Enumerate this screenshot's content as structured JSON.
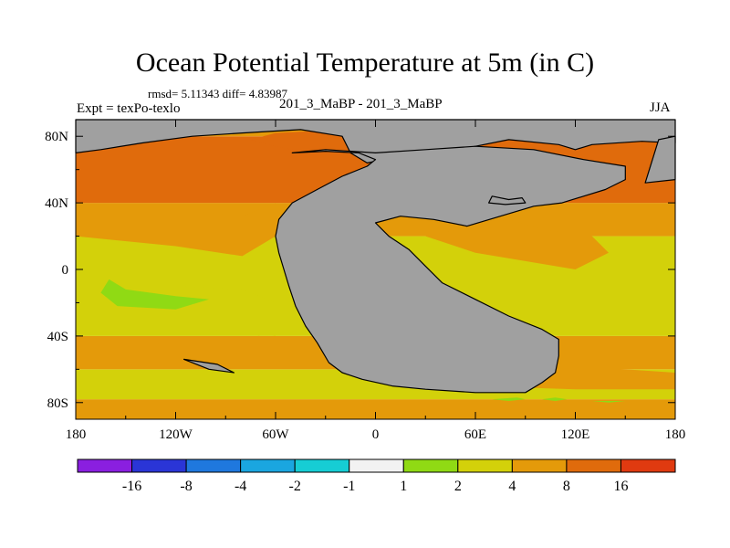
{
  "chart_data": {
    "type": "heatmap",
    "title": "Ocean Potential Temperature at 5m (in C)",
    "stats": "rmsd= 5.11343  diff= 4.83987",
    "center_label": "201_3_MaBP - 201_3_MaBP",
    "left_label": "Expt = texPo-texlo",
    "right_label": "JJA",
    "x_ticks": [
      "180",
      "120W",
      "60W",
      "0",
      "60E",
      "120E",
      "180"
    ],
    "y_ticks": [
      "80N",
      "40N",
      "0",
      "40S",
      "80S"
    ],
    "xlim": [
      -180,
      180
    ],
    "ylim": [
      -90,
      90
    ],
    "colorbar": {
      "colors": [
        "#8a1fe0",
        "#2a35d6",
        "#1f78de",
        "#1aa6e0",
        "#16cdd4",
        "#f2f2f2",
        "#90da14",
        "#d3d10a",
        "#e49a0a",
        "#e06b0c",
        "#e03a10"
      ],
      "labels": [
        "-16",
        "-8",
        "-4",
        "-2",
        "-1",
        "1",
        "2",
        "4",
        "8",
        "16"
      ]
    },
    "land_color": "#a0a0a0",
    "bands": [
      {
        "lat_min": -90,
        "lat_max": -78,
        "level": "4 to 8"
      },
      {
        "lat_min": -78,
        "lat_max": -60,
        "level": "2 to 4"
      },
      {
        "lat_min": -60,
        "lat_max": -40,
        "level": "4 to 8"
      },
      {
        "lat_min": -40,
        "lat_max": 20,
        "level": "2 to 4"
      },
      {
        "lat_min": 20,
        "lat_max": 40,
        "level": "4 to 8"
      },
      {
        "lat_min": 40,
        "lat_max": 80,
        "level": "8 to 16"
      },
      {
        "lat_min": 80,
        "lat_max": 90,
        "level": "4 to 8"
      }
    ]
  }
}
